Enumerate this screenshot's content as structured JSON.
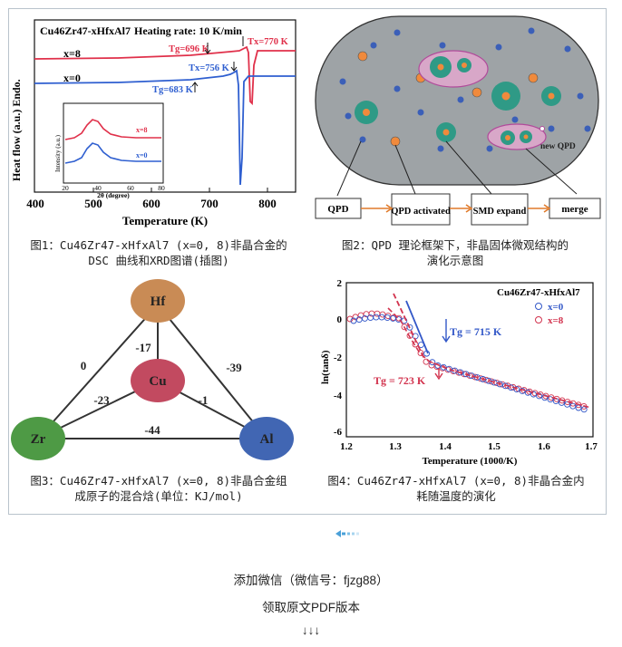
{
  "fig1": {
    "title": "Cu46Zr47-xHfxAl7",
    "heating_rate": "Heating rate: 10 K/min",
    "y_label": "Heat flow (a.u.) Endo.",
    "x_label": "Temperature (K)",
    "x_ticks": [
      "400",
      "500",
      "600",
      "700",
      "800"
    ],
    "series": [
      {
        "name": "x=8",
        "color": "#e0304a"
      },
      {
        "name": "x=0",
        "color": "#2f5fd0"
      }
    ],
    "annotations": [
      "Tg=696 K",
      "Tx=770 K",
      "Tx=756 K",
      "Tg=683 K"
    ],
    "inset": {
      "y_label": "Intensity (a.u.)",
      "x_label": "2θ (degree)",
      "x_ticks": [
        "20",
        "40",
        "60",
        "80"
      ],
      "series": [
        "x=8",
        "x=0"
      ]
    },
    "caption_line1": "图1：Cu46Zr47-xHfxAl7 (x=0, 8)非晶合金的",
    "caption_line2": "DSC 曲线和XRD图谱(插图)"
  },
  "fig2": {
    "label_new_qpd": "new QPD",
    "boxes": [
      "QPD",
      "QPD activated",
      "SMD expand",
      "merge"
    ],
    "caption_line1": "图2：QPD 理论框架下，非晶固体微观结构的",
    "caption_line2": "演化示意图"
  },
  "fig3": {
    "nodes": {
      "hf": "Hf",
      "cu": "Cu",
      "zr": "Zr",
      "al": "Al"
    },
    "colors": {
      "hf": "#c98b55",
      "cu": "#c24a60",
      "zr": "#4e9a45",
      "al": "#4166b3"
    },
    "enthalpies": {
      "hf_cu": "-17",
      "hf_zr": "0",
      "hf_al": "-39",
      "zr_cu": "-23",
      "cu_al": "-1",
      "zr_al": "-44"
    },
    "caption_line1": "图3：Cu46Zr47-xHfxAl7 (x=0, 8)非晶合金组",
    "caption_line2": "成原子的混合焓(单位：KJ/mol)"
  },
  "fig4": {
    "title": "Cu46Zr47-xHfxAl7",
    "y_label": "ln(tanδ)",
    "x_label": "Temperature (1000/K)",
    "x_ticks": [
      "1.2",
      "1.3",
      "1.4",
      "1.5",
      "1.6",
      "1.7"
    ],
    "y_ticks": [
      "2",
      "0",
      "-2",
      "-4",
      "-6"
    ],
    "series": [
      {
        "name": "x=0",
        "color": "#3358c8"
      },
      {
        "name": "x=8",
        "color": "#d2334e"
      }
    ],
    "annotations": [
      "Tg = 715 K",
      "Tg = 723 K"
    ],
    "caption_line1": "图4：Cu46Zr47-xHfxAl7 (x=0, 8)非晶合金内",
    "caption_line2": "耗随温度的演化"
  },
  "footer": {
    "line1": "添加微信（微信号：fjzg88）",
    "line2": "领取原文PDF版本",
    "line3": "↓↓↓"
  }
}
